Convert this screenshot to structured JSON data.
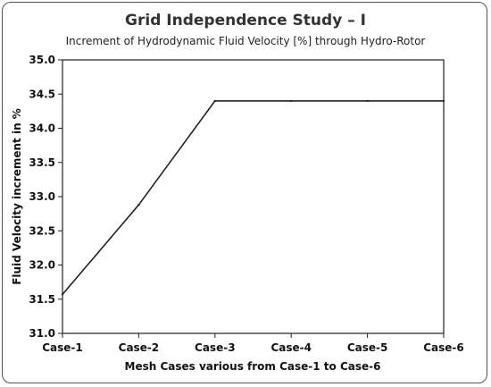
{
  "chart_data": {
    "type": "line",
    "title": "Grid Independence Study – I",
    "subtitle": "Increment of Hydrodynamic Fluid Velocity [%] through Hydro-Rotor",
    "xlabel": "Mesh Cases various from Case-1 to Case-6",
    "ylabel": "Fluid Velocity increment in %",
    "categories": [
      "Case-1",
      "Case-2",
      "Case-3",
      "Case-4",
      "Case-5",
      "Case-6"
    ],
    "y_ticks": [
      "31.0",
      "31.5",
      "32.0",
      "32.5",
      "33.0",
      "33.5",
      "34.0",
      "34.5",
      "35.0"
    ],
    "ylim": [
      31.0,
      35.0
    ],
    "grid": false,
    "series": [
      {
        "values": [
          31.57,
          32.88,
          34.4,
          34.4,
          34.4,
          34.4
        ],
        "color": "#222222"
      }
    ]
  }
}
